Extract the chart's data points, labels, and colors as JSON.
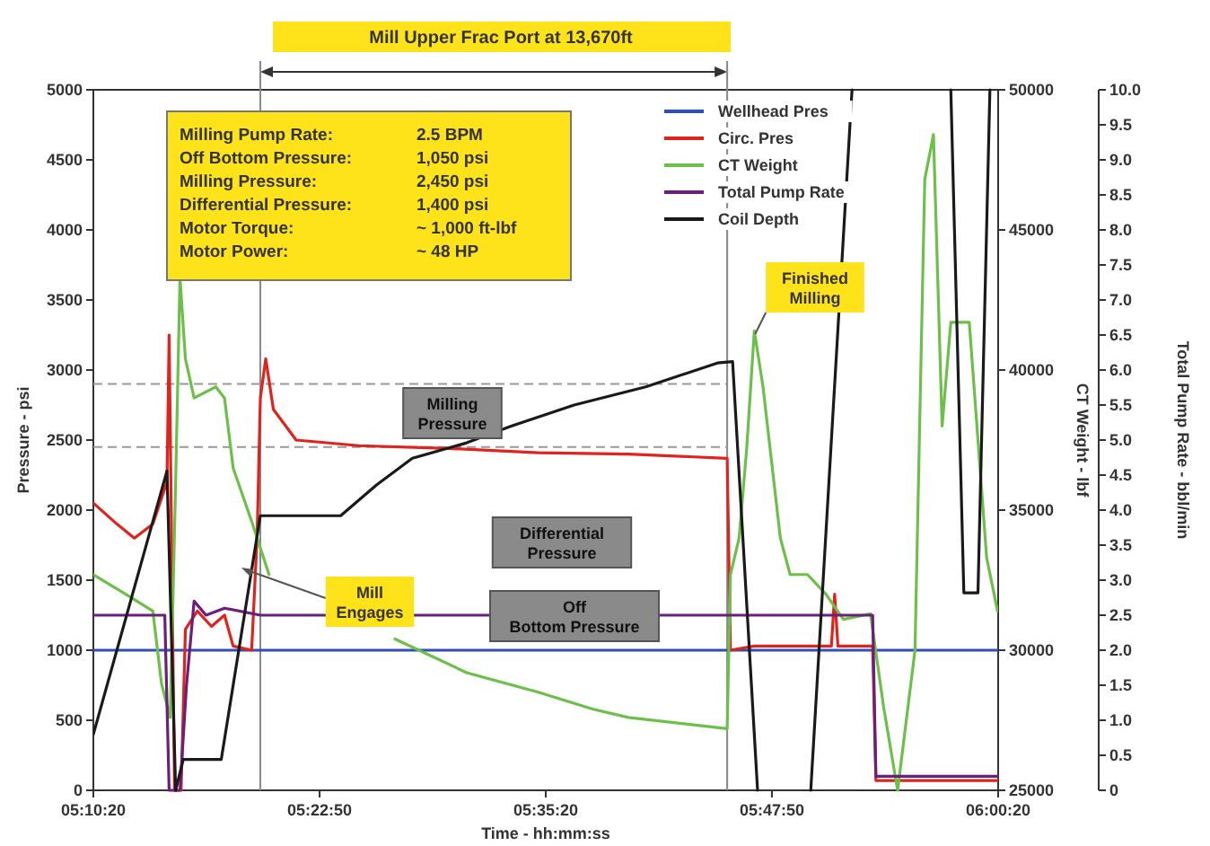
{
  "chart_data": {
    "type": "line",
    "title": "Mill Upper Frac Port at 13,670ft",
    "xlabel": "Time - hh:mm:ss",
    "ylabel": "Pressure - psi",
    "y2label": "CT Weight - lbf",
    "y3label": "Total Pump Rate - bbl/min",
    "xlim": [
      5.1722,
      6.0056
    ],
    "xticks": [
      {
        "value": 5.1722,
        "label": "05:10:20"
      },
      {
        "value": 5.3806,
        "label": "05:22:50"
      },
      {
        "value": 5.5889,
        "label": "05:35:20"
      },
      {
        "value": 5.7972,
        "label": "05:47:50"
      },
      {
        "value": 6.0056,
        "label": "06:00:20"
      }
    ],
    "ylim": [
      0,
      5000
    ],
    "yticks": [
      0,
      500,
      1000,
      1500,
      2000,
      2500,
      3000,
      3500,
      4000,
      4500,
      5000
    ],
    "y2lim": [
      25000,
      50000
    ],
    "y2ticks": [
      25000,
      30000,
      35000,
      40000,
      45000,
      50000
    ],
    "y3lim": [
      0,
      10
    ],
    "y3ticks": [
      0,
      {
        "value": 0.5,
        "label": "0.5"
      },
      {
        "value": 1,
        "label": "1.0"
      },
      {
        "value": 1.5,
        "label": "1.5"
      },
      {
        "value": 2,
        "label": "2.0"
      },
      {
        "value": 2.5,
        "label": "2.5"
      },
      {
        "value": 3,
        "label": "3.0"
      },
      {
        "value": 3.5,
        "label": "3.5"
      },
      {
        "value": 4,
        "label": "4.0"
      },
      {
        "value": 4.5,
        "label": "4.5"
      },
      {
        "value": 5,
        "label": "5.0"
      },
      {
        "value": 5.5,
        "label": "5.5"
      },
      {
        "value": 6,
        "label": "6.0"
      },
      {
        "value": 6.5,
        "label": "6.5"
      },
      {
        "value": 7,
        "label": "7.0"
      },
      {
        "value": 7.5,
        "label": "7.5"
      },
      {
        "value": 8,
        "label": "8.0"
      },
      {
        "value": 8.5,
        "label": "8.5"
      },
      {
        "value": 9,
        "label": "9.0"
      },
      {
        "value": 9.5,
        "label": "9.5"
      },
      {
        "value": 10,
        "label": "10.0"
      }
    ],
    "grid": false,
    "legend": "top right",
    "line_style": "solid",
    "marker": "none",
    "series": [
      {
        "name": "Wellhead Pres",
        "color": "#2f4fb5",
        "x": [
          5.1722,
          6.005
        ],
        "values": [
          1000,
          1000
        ]
      },
      {
        "name": "Circ. Pres",
        "color": "#e0231c",
        "x": [
          5.1722,
          5.194,
          5.21,
          5.227,
          5.24,
          5.242,
          5.247,
          5.253,
          5.257,
          5.268,
          5.281,
          5.293,
          5.301,
          5.318,
          5.323,
          5.326,
          5.331,
          5.338,
          5.359,
          5.417,
          5.5,
          5.582,
          5.665,
          5.756,
          5.759,
          5.781,
          5.852,
          5.855,
          5.858,
          5.89,
          5.893,
          6.005
        ],
        "values": [
          2050,
          1900,
          1800,
          1900,
          2200,
          3250,
          0,
          0,
          1150,
          1280,
          1170,
          1250,
          1030,
          1000,
          1800,
          2800,
          3080,
          2720,
          2500,
          2460,
          2440,
          2410,
          2400,
          2370,
          1000,
          1030,
          1030,
          1400,
          1030,
          1030,
          70,
          70
        ]
      },
      {
        "name": "CT Weight",
        "color": "#6cc04a",
        "axis": "y2",
        "x": [
          5.1722,
          5.202,
          5.227,
          5.235,
          5.243,
          5.248,
          5.252,
          5.257,
          5.265,
          5.285,
          5.293,
          5.301,
          5.318,
          5.334,
          5.384,
          5.45,
          5.516,
          5.582,
          5.632,
          5.665,
          5.756,
          5.759,
          5.767,
          5.774,
          5.781,
          5.789,
          5.805,
          5.814,
          5.83,
          5.847,
          5.863,
          5.888,
          5.9,
          5.913,
          5.929,
          5.938,
          5.946,
          5.954,
          5.962,
          5.979,
          5.995,
          6.005
        ],
        "values": [
          32700,
          32000,
          31400,
          28800,
          27600,
          36000,
          43300,
          40400,
          39000,
          39400,
          39000,
          36500,
          34600,
          32700,
          null,
          30400,
          29200,
          28500,
          27900,
          27600,
          27200,
          32700,
          34000,
          37200,
          41400,
          39400,
          34000,
          32700,
          32700,
          32000,
          31100,
          31300,
          28000,
          25000,
          30000,
          46800,
          48400,
          38000,
          41700,
          41700,
          33300,
          31400
        ]
      },
      {
        "name": "Total Pump Rate",
        "color": "#6a1f7a",
        "axis": "y3",
        "x": [
          5.1722,
          5.238,
          5.242,
          5.252,
          5.258,
          5.265,
          5.276,
          5.293,
          5.326,
          5.89,
          5.893,
          6.005
        ],
        "values": [
          2.5,
          2.5,
          0,
          0,
          1.5,
          2.7,
          2.5,
          2.6,
          2.5,
          2.5,
          0.2,
          0.2
        ]
      },
      {
        "name": "Coil Depth",
        "color": "#1a1a1a",
        "x": [
          5.1722,
          5.24,
          5.248,
          5.255,
          5.29,
          5.326,
          5.4,
          5.433,
          5.466,
          5.516,
          5.557,
          5.615,
          5.681,
          5.747,
          5.761,
          5.784,
          5.809,
          5.833,
          5.871,
          5.913,
          5.962,
          5.974,
          5.987,
          5.998
        ],
        "values": [
          400,
          2280,
          0,
          220,
          220,
          1960,
          1960,
          2180,
          2370,
          2480,
          2600,
          2750,
          2880,
          3050,
          3060,
          0,
          null,
          0,
          5000,
          null,
          5000,
          1410,
          1410,
          5000
        ]
      }
    ],
    "ref_lines": [
      {
        "axis": "x",
        "value": 5.326,
        "color": "#888888"
      },
      {
        "axis": "x",
        "value": 5.756,
        "color": "#888888"
      },
      {
        "axis": "y",
        "value": 2900,
        "color": "#999999",
        "line_style": "dashed"
      },
      {
        "axis": "y",
        "value": 2450,
        "color": "#999999",
        "line_style": "dashed"
      }
    ],
    "annotations": [
      "Milling Pressure",
      "Differential Pressure",
      "Off Bottom Pressure",
      "Mill Engages",
      "Finished Milling",
      "Milling Pump Rate: 2.5 BPM",
      "Off Bottom Pressure: 1,050 psi",
      "Milling Pressure: 2,450 psi",
      "Differential Pressure: 1,400 psi",
      "Motor Torque: ~ 1,000 ft-lbf",
      "Motor Power: ~ 48 HP"
    ]
  }
}
